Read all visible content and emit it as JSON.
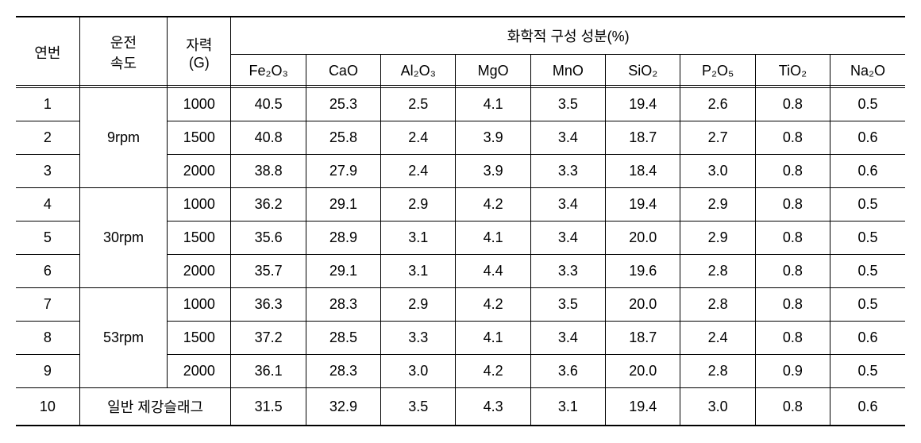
{
  "headers": {
    "num": "연번",
    "speed": "운전\n속도",
    "magnetic": "자력\n(G)",
    "chem_group": "화학적 구성 성분(%)",
    "chem": {
      "fe2o3": "Fe₂O₃",
      "cao": "CaO",
      "al2o3": "Al₂O₃",
      "mgo": "MgO",
      "mno": "MnO",
      "sio2": "SiO₂",
      "p2o5": "P₂O₅",
      "tio2": "TiO₂",
      "na2o": "Na₂O"
    }
  },
  "speed_groups": [
    {
      "label": "9rpm",
      "rowspan": 3
    },
    {
      "label": "30rpm",
      "rowspan": 3
    },
    {
      "label": "53rpm",
      "rowspan": 3
    }
  ],
  "special_row_label": "일반 제강슬래그",
  "rows": [
    {
      "num": "1",
      "speed_idx": 0,
      "mag": "1000",
      "fe2o3": "40.5",
      "cao": "25.3",
      "al2o3": "2.5",
      "mgo": "4.1",
      "mno": "3.5",
      "sio2": "19.4",
      "p2o5": "2.6",
      "tio2": "0.8",
      "na2o": "0.5"
    },
    {
      "num": "2",
      "speed_idx": 0,
      "mag": "1500",
      "fe2o3": "40.8",
      "cao": "25.8",
      "al2o3": "2.4",
      "mgo": "3.9",
      "mno": "3.4",
      "sio2": "18.7",
      "p2o5": "2.7",
      "tio2": "0.8",
      "na2o": "0.6"
    },
    {
      "num": "3",
      "speed_idx": 0,
      "mag": "2000",
      "fe2o3": "38.8",
      "cao": "27.9",
      "al2o3": "2.4",
      "mgo": "3.9",
      "mno": "3.3",
      "sio2": "18.4",
      "p2o5": "3.0",
      "tio2": "0.8",
      "na2o": "0.6"
    },
    {
      "num": "4",
      "speed_idx": 1,
      "mag": "1000",
      "fe2o3": "36.2",
      "cao": "29.1",
      "al2o3": "2.9",
      "mgo": "4.2",
      "mno": "3.4",
      "sio2": "19.4",
      "p2o5": "2.9",
      "tio2": "0.8",
      "na2o": "0.5"
    },
    {
      "num": "5",
      "speed_idx": 1,
      "mag": "1500",
      "fe2o3": "35.6",
      "cao": "28.9",
      "al2o3": "3.1",
      "mgo": "4.1",
      "mno": "3.4",
      "sio2": "20.0",
      "p2o5": "2.9",
      "tio2": "0.8",
      "na2o": "0.5"
    },
    {
      "num": "6",
      "speed_idx": 1,
      "mag": "2000",
      "fe2o3": "35.7",
      "cao": "29.1",
      "al2o3": "3.1",
      "mgo": "4.4",
      "mno": "3.3",
      "sio2": "19.6",
      "p2o5": "2.8",
      "tio2": "0.8",
      "na2o": "0.5"
    },
    {
      "num": "7",
      "speed_idx": 2,
      "mag": "1000",
      "fe2o3": "36.3",
      "cao": "28.3",
      "al2o3": "2.9",
      "mgo": "4.2",
      "mno": "3.5",
      "sio2": "20.0",
      "p2o5": "2.8",
      "tio2": "0.8",
      "na2o": "0.5"
    },
    {
      "num": "8",
      "speed_idx": 2,
      "mag": "1500",
      "fe2o3": "37.2",
      "cao": "28.5",
      "al2o3": "3.3",
      "mgo": "4.1",
      "mno": "3.4",
      "sio2": "18.7",
      "p2o5": "2.4",
      "tio2": "0.8",
      "na2o": "0.6"
    },
    {
      "num": "9",
      "speed_idx": 2,
      "mag": "2000",
      "fe2o3": "36.1",
      "cao": "28.3",
      "al2o3": "3.0",
      "mgo": "4.2",
      "mno": "3.6",
      "sio2": "20.0",
      "p2o5": "2.8",
      "tio2": "0.9",
      "na2o": "0.5"
    },
    {
      "num": "10",
      "special": true,
      "fe2o3": "31.5",
      "cao": "32.9",
      "al2o3": "3.5",
      "mgo": "4.3",
      "mno": "3.1",
      "sio2": "19.4",
      "p2o5": "3.0",
      "tio2": "0.8",
      "na2o": "0.6"
    }
  ]
}
